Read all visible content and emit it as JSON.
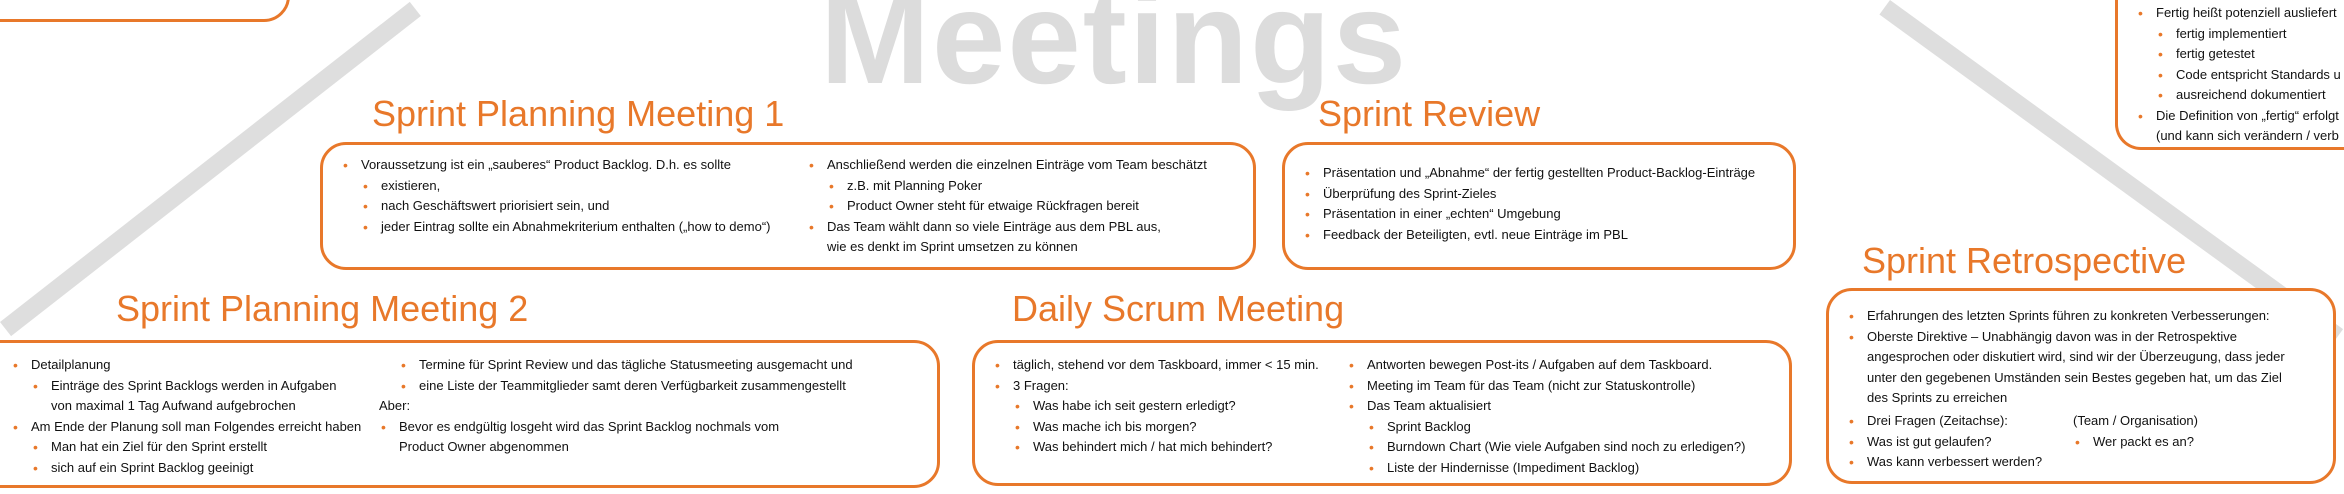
{
  "background_title": "Meetings",
  "top_right_box": {
    "items": [
      {
        "text": "Fertig heißt potenziell ausliefert",
        "level": 0
      },
      {
        "text": "fertig implementiert",
        "level": 1
      },
      {
        "text": "fertig getestet",
        "level": 1
      },
      {
        "text": "Code entspricht Standards u",
        "level": 1
      },
      {
        "text": "ausreichend dokumentiert",
        "level": 1
      },
      {
        "text": "Die Definition von „fertig“ erfolgt",
        "level": 0
      },
      {
        "text": "(und kann sich verändern / verb",
        "level": 0,
        "cont": true
      }
    ]
  },
  "spm1": {
    "title": "Sprint Planning Meeting 1",
    "left": [
      {
        "text": "Voraussetzung ist ein „sauberes“ Product Backlog. D.h. es sollte",
        "level": 0
      },
      {
        "text": "existieren,",
        "level": 1
      },
      {
        "text": "nach Geschäftswert priorisiert sein, und",
        "level": 1
      },
      {
        "text": "jeder Eintrag sollte ein Abnahmekriterium enthalten („how to demo“)",
        "level": 1
      }
    ],
    "right": [
      {
        "text": "Anschließend werden die einzelnen Einträge vom Team beschätzt",
        "level": 0
      },
      {
        "text": "z.B. mit Planning Poker",
        "level": 1
      },
      {
        "text": "Product Owner steht für etwaige Rückfragen bereit",
        "level": 1
      },
      {
        "text": "Das Team wählt dann so viele Einträge aus dem PBL aus,",
        "level": 0
      },
      {
        "text": "wie es denkt im Sprint umsetzen zu können",
        "level": 0,
        "cont": true
      }
    ]
  },
  "review": {
    "title": "Sprint Review",
    "items": [
      {
        "text": "Präsentation und „Abnahme“ der fertig gestellten Product-Backlog-Einträge",
        "level": 0
      },
      {
        "text": "Überprüfung des Sprint-Zieles",
        "level": 0
      },
      {
        "text": "Präsentation in einer „echten“ Umgebung",
        "level": 0
      },
      {
        "text": "Feedback der Beteiligten, evtl. neue Einträge im PBL",
        "level": 0
      }
    ]
  },
  "spm2": {
    "title": "Sprint Planning Meeting 2",
    "left": [
      {
        "text": "Detailplanung",
        "level": 0
      },
      {
        "text": "Einträge des Sprint Backlogs werden in Aufgaben",
        "level": 1
      },
      {
        "text": "von maximal 1 Tag Aufwand aufgebrochen",
        "level": 1,
        "cont": true
      },
      {
        "text": "Am Ende der Planung soll man Folgendes erreicht haben",
        "level": 0
      },
      {
        "text": "Man hat ein Ziel für den Sprint erstellt",
        "level": 1
      },
      {
        "text": "sich auf ein Sprint Backlog geeinigt",
        "level": 1
      }
    ],
    "right": [
      {
        "text": "Termine für Sprint Review und das tägliche Statusmeeting ausgemacht und",
        "level": 1
      },
      {
        "text": "eine Liste der Teammitglieder samt deren Verfügbarkeit zusammengestellt",
        "level": 1
      },
      {
        "text": "Aber:",
        "level": 0,
        "plain": true
      },
      {
        "text": "Bevor es endgültig losgeht wird das Sprint Backlog nochmals vom",
        "level": 0
      },
      {
        "text": "Product Owner abgenommen",
        "level": 0,
        "cont": true
      }
    ]
  },
  "daily": {
    "title": "Daily Scrum Meeting",
    "left": [
      {
        "text": "täglich, stehend vor dem Taskboard, immer < 15 min.",
        "level": 0
      },
      {
        "text": "3 Fragen:",
        "level": 0
      },
      {
        "text": "Was habe ich seit gestern erledigt?",
        "level": 1
      },
      {
        "text": "Was mache ich bis morgen?",
        "level": 1
      },
      {
        "text": "Was behindert mich / hat mich behindert?",
        "level": 1
      }
    ],
    "right": [
      {
        "text": "Antworten bewegen Post-its / Aufgaben auf dem Taskboard.",
        "level": 0
      },
      {
        "text": "Meeting im Team für das Team (nicht zur Statuskontrolle)",
        "level": 0
      },
      {
        "text": "Das Team aktualisiert",
        "level": 0
      },
      {
        "text": "Sprint Backlog",
        "level": 1
      },
      {
        "text": "Burndown Chart (Wie viele Aufgaben sind noch zu erledigen?)",
        "level": 1
      },
      {
        "text": "Liste der Hindernisse (Impediment Backlog)",
        "level": 1
      }
    ]
  },
  "retro": {
    "title": "Sprint Retrospective",
    "items": [
      {
        "text": "Erfahrungen des letzten Sprints führen zu konkreten Verbesserungen:",
        "level": 0
      },
      {
        "text": "Oberste Direktive – Unabhängig davon was in der Retrospektive",
        "level": 0
      },
      {
        "text": "angesprochen oder diskutiert wird, sind wir der Überzeugung, dass jeder",
        "level": 0,
        "cont": true
      },
      {
        "text": "unter den gegebenen Umständen sein Bestes gegeben hat, um das Ziel",
        "level": 0,
        "cont": true
      },
      {
        "text": "des Sprints zu erreichen",
        "level": 0,
        "cont": true
      }
    ],
    "questions_left": [
      {
        "text": "Drei Fragen (Zeitachse):",
        "level": 0
      },
      {
        "text": "Was ist gut gelaufen?",
        "level": 0
      },
      {
        "text": "Was kann verbessert werden?",
        "level": 0
      }
    ],
    "questions_right": [
      {
        "text": "(Team / Organisation)",
        "level": 0,
        "plain": true
      },
      {
        "text": "Wer packt es an?",
        "level": 0
      }
    ]
  }
}
